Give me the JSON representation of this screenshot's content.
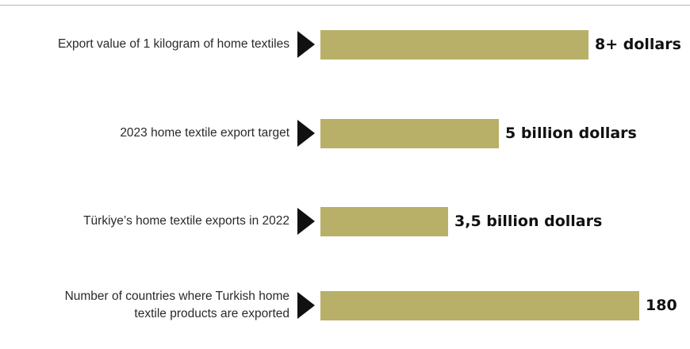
{
  "chart_data": {
    "type": "bar",
    "orientation": "horizontal",
    "title": "",
    "color": "#b8b068",
    "categories": [
      "Export value of 1 kilogram of home textiles",
      "2023 home textile export target",
      "Türkiye’s home textile exports in 2022",
      "Number of countries where Turkish home textile products are exported"
    ],
    "category_lines": [
      [
        "Export value of 1 kilogram of home textiles"
      ],
      [
        "2023 home textile export target"
      ],
      [
        "Türkiye’s home textile exports in 2022"
      ],
      [
        "Number of countries where Turkish home",
        "textile products are exported"
      ]
    ],
    "value_labels": [
      "8+ dollars",
      "5 billion dollars",
      "3,5 billion dollars",
      "180"
    ],
    "values": [
      8,
      5,
      3.5,
      180
    ],
    "relative_lengths": [
      0.84,
      0.56,
      0.4,
      1.0
    ],
    "xlabel": "",
    "ylabel": "",
    "grid": false,
    "legend": "none"
  }
}
